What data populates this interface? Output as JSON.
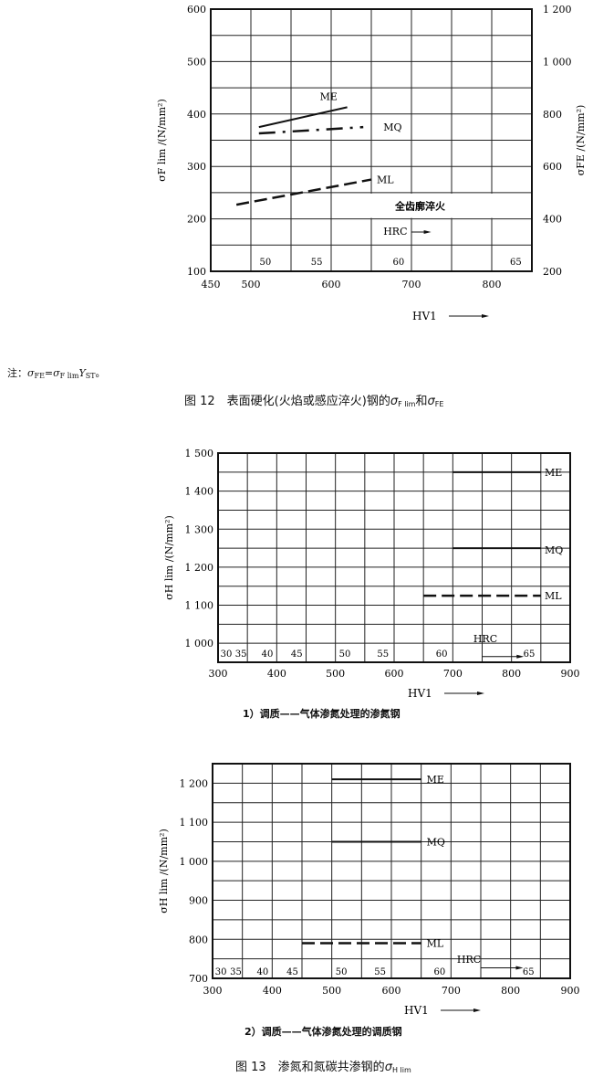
{
  "note": {
    "prefix": "注：",
    "sym_fe": "σ",
    "sub_fe": "FE",
    "eq": "=",
    "sym_flim": "σ",
    "sub_flim": "F lim",
    "y": "Y",
    "sub_st": "ST",
    "end": "。"
  },
  "fig12": {
    "caption_a": "图 12　表面硬化(火焰或感应淬火)钢的",
    "sym1": "σ",
    "sub1": "F lim",
    "and": "和",
    "sym2": "σ",
    "sub2": "FE"
  },
  "fig13": {
    "caption_a": "图 13　渗氮和氮碳共渗钢的",
    "sym": "σ",
    "sub": "H lim"
  },
  "chart_data": [
    {
      "type": "line",
      "xlabel": "HV1",
      "ylabel": "σF lim /(N/mm²)",
      "y2label": "σFE /(N/mm²)",
      "xlim": [
        450,
        850
      ],
      "ylim": [
        100,
        600
      ],
      "y2lim": [
        200,
        1200
      ],
      "xticks": [
        "450",
        "500",
        "600",
        "700",
        "800"
      ],
      "xtick_values": [
        450,
        500,
        600,
        700,
        800
      ],
      "yticks": [
        "100",
        "200",
        "300",
        "400",
        "500",
        "600"
      ],
      "ytick_values": [
        100,
        200,
        300,
        400,
        500,
        600
      ],
      "y2ticks": [
        "200",
        "400",
        "600",
        "800",
        "1 000",
        "1 200"
      ],
      "grid": true,
      "series": [
        {
          "name": "ME",
          "style": "solid",
          "x": [
            510,
            620
          ],
          "y": [
            375,
            413
          ]
        },
        {
          "name": "MQ",
          "style": "dashdot",
          "x": [
            510,
            640
          ],
          "y": [
            363,
            375
          ]
        },
        {
          "name": "ML",
          "style": "dashed",
          "x": [
            482,
            650
          ],
          "y": [
            227,
            275
          ]
        }
      ],
      "band": {
        "label": "全齿廓淬火",
        "x": [
          600,
          850
        ],
        "y": [
          200,
          250
        ]
      },
      "hrc": {
        "label": "HRC",
        "ticks": [
          "50",
          "55",
          "60",
          "65"
        ],
        "hv": [
          518,
          582,
          684,
          830
        ]
      }
    },
    {
      "type": "line",
      "xlabel": "HV1",
      "ylabel": "σH lim /(N/mm²)",
      "subtitle": "1）调质——气体渗氮处理的渗氮钢",
      "xlim": [
        300,
        900
      ],
      "ylim": [
        950,
        1500
      ],
      "xticks": [
        "300",
        "400",
        "500",
        "600",
        "700",
        "800",
        "900"
      ],
      "xtick_values": [
        300,
        400,
        500,
        600,
        700,
        800,
        900
      ],
      "yticks": [
        "1 000",
        "1 100",
        "1 200",
        "1 300",
        "1 400",
        "1 500"
      ],
      "ytick_values": [
        1000,
        1100,
        1200,
        1300,
        1400,
        1500
      ],
      "grid": true,
      "series": [
        {
          "name": "ME",
          "style": "solid",
          "x": [
            700,
            850
          ],
          "y": [
            1450,
            1450
          ]
        },
        {
          "name": "MQ",
          "style": "solid",
          "x": [
            700,
            850
          ],
          "y": [
            1250,
            1250
          ]
        },
        {
          "name": "ML",
          "style": "dashed",
          "x": [
            650,
            850
          ],
          "y": [
            1125,
            1125
          ]
        }
      ],
      "hrc": {
        "label": "HRC",
        "ticks": [
          "30",
          "35",
          "40",
          "45",
          "50",
          "55",
          "60",
          "65"
        ],
        "hv": [
          314,
          339,
          384,
          434,
          516,
          581,
          681,
          830
        ]
      }
    },
    {
      "type": "line",
      "xlabel": "HV1",
      "ylabel": "σH lim /(N/mm²)",
      "subtitle": "2）调质——气体渗氮处理的调质钢",
      "xlim": [
        300,
        900
      ],
      "ylim": [
        700,
        1250
      ],
      "xticks": [
        "300",
        "400",
        "500",
        "600",
        "700",
        "800",
        "900"
      ],
      "xtick_values": [
        300,
        400,
        500,
        600,
        700,
        800,
        900
      ],
      "yticks": [
        "700",
        "800",
        "900",
        "1 000",
        "1 100",
        "1 200"
      ],
      "ytick_values": [
        700,
        800,
        900,
        1000,
        1100,
        1200
      ],
      "grid": true,
      "series": [
        {
          "name": "ME",
          "style": "solid",
          "x": [
            500,
            650
          ],
          "y": [
            1210,
            1210
          ]
        },
        {
          "name": "MQ",
          "style": "solid",
          "x": [
            500,
            650
          ],
          "y": [
            1050,
            1050
          ]
        },
        {
          "name": "ML",
          "style": "dashed",
          "x": [
            450,
            650
          ],
          "y": [
            790,
            790
          ]
        }
      ],
      "hrc": {
        "label": "HRC",
        "ticks": [
          "30",
          "35",
          "40",
          "45",
          "50",
          "55",
          "60",
          "65"
        ],
        "hv": [
          314,
          339,
          384,
          434,
          516,
          581,
          681,
          830
        ]
      }
    }
  ]
}
